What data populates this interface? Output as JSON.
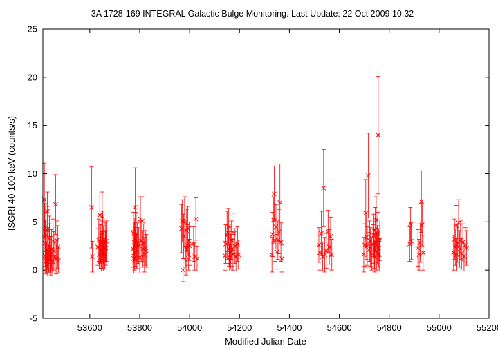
{
  "chart_data": {
    "type": "scatter",
    "title": "3A 1728-169   INTEGRAL Galactic Bulge Monitoring.  Last Update: 22 Oct 2009 10:32",
    "xlabel": "Modified Julian Date",
    "ylabel": "ISGRI 40-100 keV (counts/s)",
    "xlim": [
      53412,
      55200
    ],
    "ylim": [
      -5,
      25
    ],
    "x_ticks": [
      "53600",
      "53800",
      "54000",
      "54200",
      "54400",
      "54600",
      "54800",
      "55000",
      "55200"
    ],
    "y_ticks": [
      "-5",
      "0",
      "5",
      "10",
      "15",
      "20",
      "25"
    ],
    "grid": false,
    "marker": "x",
    "error_bars": true,
    "colors": {
      "series": "#ff0000",
      "axes": "#000000"
    },
    "series": [
      {
        "points": [
          {
            "x": 53418,
            "y": 7.3,
            "err": 3.8
          },
          {
            "x": 53420,
            "y": 4.4,
            "err": 2.5
          },
          {
            "x": 53421,
            "y": 1.5,
            "err": 1.8
          },
          {
            "x": 53422,
            "y": 2.8,
            "err": 2.4
          },
          {
            "x": 53424,
            "y": 0.9,
            "err": 1.3
          },
          {
            "x": 53425,
            "y": 3.6,
            "err": 2.4
          },
          {
            "x": 53427,
            "y": 1.3,
            "err": 1.6
          },
          {
            "x": 53429,
            "y": 2.1,
            "err": 2.0
          },
          {
            "x": 53430,
            "y": 6.1,
            "err": 2.0
          },
          {
            "x": 53431,
            "y": 0.8,
            "err": 1.4
          },
          {
            "x": 53432,
            "y": 4.3,
            "err": 2.3
          },
          {
            "x": 53434,
            "y": 1.9,
            "err": 2.1
          },
          {
            "x": 53436,
            "y": 1.2,
            "err": 1.5
          },
          {
            "x": 53438,
            "y": 3.3,
            "err": 2.3
          },
          {
            "x": 53440,
            "y": 2.4,
            "err": 2.4
          },
          {
            "x": 53443,
            "y": 1.6,
            "err": 1.9
          },
          {
            "x": 53445,
            "y": 0.9,
            "err": 1.4
          },
          {
            "x": 53447,
            "y": 2.2,
            "err": 2.0
          },
          {
            "x": 53450,
            "y": 1.0,
            "err": 1.3
          },
          {
            "x": 53453,
            "y": 3.0,
            "err": 2.3
          },
          {
            "x": 53456,
            "y": 2.0,
            "err": 2.0
          },
          {
            "x": 53460,
            "y": 1.4,
            "err": 1.5
          },
          {
            "x": 53463,
            "y": 6.8,
            "err": 3.1
          },
          {
            "x": 53465,
            "y": 1.2,
            "err": 1.6
          },
          {
            "x": 53468,
            "y": 3.1,
            "err": 2.0
          },
          {
            "x": 53472,
            "y": 2.4,
            "err": 2.2
          },
          {
            "x": 53474,
            "y": 1.0,
            "err": 1.3
          },
          {
            "x": 53607,
            "y": 6.5,
            "err": 4.2
          },
          {
            "x": 53610,
            "y": 1.4,
            "err": 1.6
          },
          {
            "x": 53632,
            "y": 2.4,
            "err": 1.9
          },
          {
            "x": 53636,
            "y": 3.1,
            "err": 2.2
          },
          {
            "x": 53638,
            "y": 1.6,
            "err": 1.5
          },
          {
            "x": 53640,
            "y": 5.7,
            "err": 2.3
          },
          {
            "x": 53641,
            "y": 0.9,
            "err": 1.2
          },
          {
            "x": 53643,
            "y": 2.7,
            "err": 2.0
          },
          {
            "x": 53645,
            "y": 2.0,
            "err": 1.8
          },
          {
            "x": 53646,
            "y": 1.3,
            "err": 1.4
          },
          {
            "x": 53648,
            "y": 3.0,
            "err": 2.1
          },
          {
            "x": 53650,
            "y": 5.6,
            "err": 2.5
          },
          {
            "x": 53651,
            "y": 2.1,
            "err": 1.9
          },
          {
            "x": 53652,
            "y": 3.8,
            "err": 2.3
          },
          {
            "x": 53654,
            "y": 1.5,
            "err": 1.6
          },
          {
            "x": 53655,
            "y": 2.6,
            "err": 2.0
          },
          {
            "x": 53657,
            "y": 3.2,
            "err": 2.2
          },
          {
            "x": 53658,
            "y": 2.2,
            "err": 1.9
          },
          {
            "x": 53660,
            "y": 1.6,
            "err": 1.5
          },
          {
            "x": 53662,
            "y": 2.9,
            "err": 2.0
          },
          {
            "x": 53664,
            "y": 2.3,
            "err": 1.8
          },
          {
            "x": 53666,
            "y": 3.0,
            "err": 2.1
          },
          {
            "x": 53773,
            "y": 2.2,
            "err": 1.9
          },
          {
            "x": 53775,
            "y": 3.8,
            "err": 2.2
          },
          {
            "x": 53776,
            "y": 1.2,
            "err": 1.5
          },
          {
            "x": 53778,
            "y": 2.9,
            "err": 2.1
          },
          {
            "x": 53779,
            "y": 1.8,
            "err": 1.8
          },
          {
            "x": 53780,
            "y": 3.2,
            "err": 2.2
          },
          {
            "x": 53782,
            "y": 6.5,
            "err": 4.1
          },
          {
            "x": 53783,
            "y": 2.4,
            "err": 2.0
          },
          {
            "x": 53785,
            "y": 1.1,
            "err": 1.4
          },
          {
            "x": 53786,
            "y": 3.7,
            "err": 2.3
          },
          {
            "x": 53788,
            "y": 2.0,
            "err": 1.8
          },
          {
            "x": 53790,
            "y": 2.8,
            "err": 2.1
          },
          {
            "x": 53796,
            "y": 2.5,
            "err": 1.9
          },
          {
            "x": 53800,
            "y": 1.3,
            "err": 1.6
          },
          {
            "x": 53803,
            "y": 5.3,
            "err": 2.3
          },
          {
            "x": 53806,
            "y": 3.0,
            "err": 2.1
          },
          {
            "x": 53810,
            "y": 5.1,
            "err": 2.5
          },
          {
            "x": 53813,
            "y": 2.2,
            "err": 1.9
          },
          {
            "x": 53816,
            "y": 2.8,
            "err": 2.0
          },
          {
            "x": 53819,
            "y": 1.6,
            "err": 1.8
          },
          {
            "x": 53823,
            "y": 2.3,
            "err": 1.8
          },
          {
            "x": 53826,
            "y": 2.0,
            "err": 1.7
          },
          {
            "x": 53968,
            "y": 4.3,
            "err": 2.5
          },
          {
            "x": 53971,
            "y": 5.1,
            "err": 2.2
          },
          {
            "x": 53974,
            "y": 0.0,
            "err": 1.2
          },
          {
            "x": 53976,
            "y": 3.5,
            "err": 2.3
          },
          {
            "x": 53980,
            "y": 5.0,
            "err": 2.6
          },
          {
            "x": 53983,
            "y": 2.3,
            "err": 2.0
          },
          {
            "x": 53986,
            "y": 1.0,
            "err": 1.5
          },
          {
            "x": 53988,
            "y": 4.1,
            "err": 2.2
          },
          {
            "x": 53990,
            "y": 2.6,
            "err": 2.1
          },
          {
            "x": 53993,
            "y": 4.3,
            "err": 2.3
          },
          {
            "x": 53996,
            "y": 1.6,
            "err": 1.6
          },
          {
            "x": 53998,
            "y": 3.0,
            "err": 2.0
          },
          {
            "x": 54001,
            "y": 2.5,
            "err": 2.0
          },
          {
            "x": 54016,
            "y": 2.7,
            "err": 1.8
          },
          {
            "x": 54020,
            "y": 1.4,
            "err": 1.4
          },
          {
            "x": 54025,
            "y": 5.3,
            "err": 2.2
          },
          {
            "x": 54030,
            "y": 1.2,
            "err": 1.3
          },
          {
            "x": 54142,
            "y": 1.5,
            "err": 1.5
          },
          {
            "x": 54145,
            "y": 2.7,
            "err": 2.0
          },
          {
            "x": 54150,
            "y": 3.6,
            "err": 2.5
          },
          {
            "x": 54153,
            "y": 3.9,
            "err": 2.0
          },
          {
            "x": 54156,
            "y": 4.5,
            "err": 1.9
          },
          {
            "x": 54158,
            "y": 2.2,
            "err": 1.8
          },
          {
            "x": 54160,
            "y": 1.3,
            "err": 1.4
          },
          {
            "x": 54163,
            "y": 2.6,
            "err": 1.9
          },
          {
            "x": 54165,
            "y": 1.9,
            "err": 1.8
          },
          {
            "x": 54168,
            "y": 3.1,
            "err": 2.0
          },
          {
            "x": 54170,
            "y": 2.2,
            "err": 1.8
          },
          {
            "x": 54174,
            "y": 1.6,
            "err": 1.6
          },
          {
            "x": 54178,
            "y": 3.8,
            "err": 2.1
          },
          {
            "x": 54182,
            "y": 2.5,
            "err": 1.8
          },
          {
            "x": 54186,
            "y": 1.4,
            "err": 1.5
          },
          {
            "x": 54192,
            "y": 2.7,
            "err": 1.8
          },
          {
            "x": 54196,
            "y": 1.6,
            "err": 1.5
          },
          {
            "x": 54330,
            "y": 1.6,
            "err": 1.8
          },
          {
            "x": 54333,
            "y": 3.7,
            "err": 2.3
          },
          {
            "x": 54336,
            "y": 5.2,
            "err": 2.4
          },
          {
            "x": 54339,
            "y": 7.9,
            "err": 2.9
          },
          {
            "x": 54342,
            "y": 3.1,
            "err": 2.2
          },
          {
            "x": 54346,
            "y": 4.5,
            "err": 2.3
          },
          {
            "x": 54350,
            "y": 1.9,
            "err": 1.8
          },
          {
            "x": 54354,
            "y": 3.1,
            "err": 2.0
          },
          {
            "x": 54358,
            "y": 4.0,
            "err": 2.3
          },
          {
            "x": 54362,
            "y": 7.0,
            "err": 4.0
          },
          {
            "x": 54366,
            "y": 2.9,
            "err": 2.0
          },
          {
            "x": 54370,
            "y": 1.2,
            "err": 1.4
          },
          {
            "x": 54518,
            "y": 2.6,
            "err": 1.8
          },
          {
            "x": 54522,
            "y": 1.8,
            "err": 1.8
          },
          {
            "x": 54528,
            "y": 3.8,
            "err": 2.3
          },
          {
            "x": 54533,
            "y": 1.4,
            "err": 1.5
          },
          {
            "x": 54537,
            "y": 8.5,
            "err": 4.0
          },
          {
            "x": 54542,
            "y": 1.6,
            "err": 1.8
          },
          {
            "x": 54548,
            "y": 2.0,
            "err": 1.8
          },
          {
            "x": 54555,
            "y": 4.0,
            "err": 2.2
          },
          {
            "x": 54560,
            "y": 2.4,
            "err": 1.8
          },
          {
            "x": 54565,
            "y": 3.5,
            "err": 2.0
          },
          {
            "x": 54570,
            "y": 1.6,
            "err": 1.6
          },
          {
            "x": 54698,
            "y": 1.6,
            "err": 1.8
          },
          {
            "x": 54702,
            "y": 2.6,
            "err": 2.2
          },
          {
            "x": 54706,
            "y": 5.9,
            "err": 3.5
          },
          {
            "x": 54709,
            "y": 3.4,
            "err": 2.3
          },
          {
            "x": 54712,
            "y": 2.5,
            "err": 2.0
          },
          {
            "x": 54716,
            "y": 9.8,
            "err": 4.4
          },
          {
            "x": 54719,
            "y": 2.1,
            "err": 1.8
          },
          {
            "x": 54722,
            "y": 3.0,
            "err": 2.1
          },
          {
            "x": 54725,
            "y": 2.4,
            "err": 2.0
          },
          {
            "x": 54730,
            "y": 1.7,
            "err": 1.7
          },
          {
            "x": 54735,
            "y": 2.7,
            "err": 2.0
          },
          {
            "x": 54738,
            "y": 3.6,
            "err": 2.2
          },
          {
            "x": 54740,
            "y": 2.2,
            "err": 2.0
          },
          {
            "x": 54742,
            "y": 1.4,
            "err": 1.6
          },
          {
            "x": 54744,
            "y": 4.2,
            "err": 2.3
          },
          {
            "x": 54746,
            "y": 2.9,
            "err": 2.1
          },
          {
            "x": 54748,
            "y": 5.2,
            "err": 2.4
          },
          {
            "x": 54750,
            "y": 1.9,
            "err": 1.9
          },
          {
            "x": 54752,
            "y": 2.6,
            "err": 2.0
          },
          {
            "x": 54754,
            "y": 3.8,
            "err": 2.2
          },
          {
            "x": 54756,
            "y": 14.0,
            "err": 6.1
          },
          {
            "x": 54758,
            "y": 2.3,
            "err": 2.0
          },
          {
            "x": 54760,
            "y": 1.6,
            "err": 1.7
          },
          {
            "x": 54762,
            "y": 3.1,
            "err": 2.1
          },
          {
            "x": 54882,
            "y": 2.7,
            "err": 1.8
          },
          {
            "x": 54885,
            "y": 4.8,
            "err": 1.7
          },
          {
            "x": 54888,
            "y": 3.0,
            "err": 1.9
          },
          {
            "x": 54915,
            "y": 2.3,
            "err": 1.9
          },
          {
            "x": 54920,
            "y": 1.6,
            "err": 1.6
          },
          {
            "x": 54924,
            "y": 2.8,
            "err": 2.0
          },
          {
            "x": 54929,
            "y": 7.1,
            "err": 3.2
          },
          {
            "x": 54932,
            "y": 4.7,
            "err": 2.2
          },
          {
            "x": 54936,
            "y": 1.8,
            "err": 1.8
          },
          {
            "x": 55058,
            "y": 1.8,
            "err": 1.8
          },
          {
            "x": 55062,
            "y": 3.2,
            "err": 2.1
          },
          {
            "x": 55065,
            "y": 2.4,
            "err": 1.9
          },
          {
            "x": 55068,
            "y": 4.6,
            "err": 2.1
          },
          {
            "x": 55071,
            "y": 1.6,
            "err": 1.7
          },
          {
            "x": 55074,
            "y": 2.8,
            "err": 2.0
          },
          {
            "x": 55078,
            "y": 4.9,
            "err": 2.4
          },
          {
            "x": 55082,
            "y": 2.2,
            "err": 1.9
          },
          {
            "x": 55086,
            "y": 3.1,
            "err": 2.0
          },
          {
            "x": 55090,
            "y": 1.7,
            "err": 1.6
          },
          {
            "x": 55095,
            "y": 2.9,
            "err": 1.9
          },
          {
            "x": 55100,
            "y": 1.4,
            "err": 1.5
          },
          {
            "x": 55105,
            "y": 2.6,
            "err": 1.8
          },
          {
            "x": 55110,
            "y": 2.3,
            "err": 1.8
          }
        ]
      }
    ]
  }
}
